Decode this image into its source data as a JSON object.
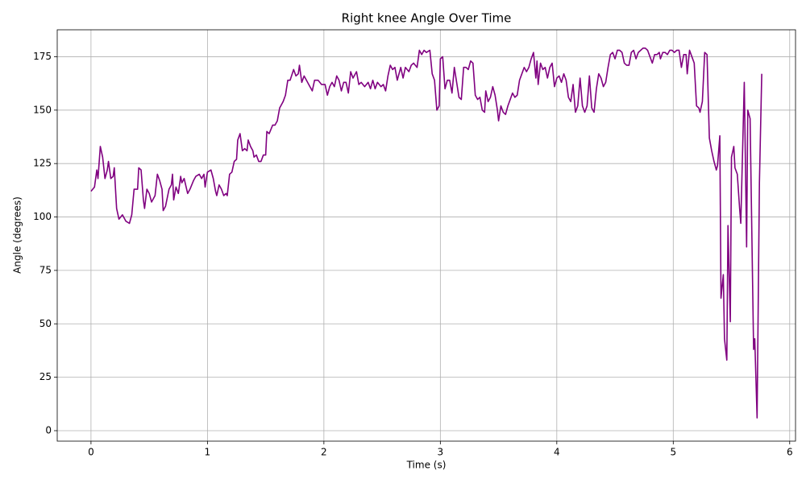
{
  "chart_data": {
    "type": "line",
    "title": "Right knee Angle Over Time",
    "x_label": "Time (s)",
    "y_label": "Angle (degrees)",
    "x": [
      0,
      0.03,
      0.05,
      0.06,
      0.08,
      0.1,
      0.12,
      0.14,
      0.15,
      0.17,
      0.19,
      0.2,
      0.22,
      0.24,
      0.27,
      0.3,
      0.33,
      0.35,
      0.37,
      0.4,
      0.41,
      0.43,
      0.45,
      0.46,
      0.48,
      0.5,
      0.52,
      0.55,
      0.57,
      0.59,
      0.61,
      0.62,
      0.64,
      0.67,
      0.69,
      0.7,
      0.71,
      0.73,
      0.75,
      0.77,
      0.78,
      0.8,
      0.83,
      0.85,
      0.88,
      0.9,
      0.93,
      0.95,
      0.97,
      0.98,
      1,
      1.03,
      1.05,
      1.07,
      1.08,
      1.1,
      1.12,
      1.14,
      1.16,
      1.17,
      1.19,
      1.21,
      1.23,
      1.25,
      1.26,
      1.28,
      1.3,
      1.32,
      1.34,
      1.35,
      1.37,
      1.39,
      1.4,
      1.42,
      1.44,
      1.46,
      1.48,
      1.5,
      1.51,
      1.53,
      1.56,
      1.58,
      1.6,
      1.62,
      1.65,
      1.67,
      1.69,
      1.71,
      1.74,
      1.76,
      1.78,
      1.79,
      1.81,
      1.83,
      1.85,
      1.88,
      1.9,
      1.92,
      1.95,
      1.98,
      2.01,
      2.03,
      2.05,
      2.07,
      2.09,
      2.11,
      2.13,
      2.15,
      2.17,
      2.19,
      2.21,
      2.23,
      2.25,
      2.28,
      2.3,
      2.32,
      2.35,
      2.38,
      2.4,
      2.42,
      2.44,
      2.46,
      2.49,
      2.51,
      2.53,
      2.55,
      2.57,
      2.59,
      2.61,
      2.63,
      2.66,
      2.68,
      2.7,
      2.73,
      2.75,
      2.77,
      2.8,
      2.82,
      2.84,
      2.86,
      2.88,
      2.91,
      2.93,
      2.95,
      2.97,
      2.99,
      3.0,
      3.02,
      3.04,
      3.06,
      3.08,
      3.1,
      3.12,
      3.14,
      3.16,
      3.18,
      3.2,
      3.22,
      3.24,
      3.26,
      3.28,
      3.3,
      3.32,
      3.34,
      3.36,
      3.38,
      3.39,
      3.41,
      3.43,
      3.45,
      3.47,
      3.49,
      3.5,
      3.52,
      3.54,
      3.56,
      3.58,
      3.6,
      3.62,
      3.64,
      3.66,
      3.68,
      3.7,
      3.72,
      3.74,
      3.76,
      3.78,
      3.8,
      3.82,
      3.83,
      3.84,
      3.86,
      3.88,
      3.9,
      3.92,
      3.94,
      3.96,
      3.98,
      4.0,
      4.02,
      4.04,
      4.06,
      4.08,
      4.1,
      4.12,
      4.14,
      4.16,
      4.18,
      4.2,
      4.22,
      4.24,
      4.26,
      4.28,
      4.3,
      4.32,
      4.34,
      4.36,
      4.38,
      4.4,
      4.42,
      4.44,
      4.46,
      4.48,
      4.5,
      4.52,
      4.54,
      4.56,
      4.58,
      4.6,
      4.62,
      4.64,
      4.66,
      4.68,
      4.7,
      4.72,
      4.74,
      4.76,
      4.78,
      4.8,
      4.82,
      4.84,
      4.86,
      4.88,
      4.89,
      4.91,
      4.93,
      4.95,
      4.97,
      4.99,
      5.01,
      5.03,
      5.05,
      5.07,
      5.09,
      5.11,
      5.12,
      5.14,
      5.16,
      5.18,
      5.2,
      5.22,
      5.23,
      5.25,
      5.27,
      5.29,
      5.31,
      5.33,
      5.35,
      5.37,
      5.38,
      5.4,
      5.41,
      5.43,
      5.44,
      5.46,
      5.47,
      5.49,
      5.5,
      5.52,
      5.53,
      5.55,
      5.57,
      5.58,
      5.61,
      5.63,
      5.64,
      5.66,
      5.69,
      5.7,
      5.72,
      5.74,
      5.76
    ],
    "series": [
      {
        "name": "Right knee",
        "color": "#800080",
        "values": [
          112,
          114,
          122,
          118,
          133,
          128,
          118,
          122,
          126,
          118,
          119,
          123,
          104,
          99,
          101,
          98,
          97,
          101,
          113,
          113,
          123,
          122,
          108,
          104,
          113,
          111,
          107,
          110,
          120,
          117,
          113,
          103,
          105,
          113,
          115,
          120,
          108,
          114,
          111,
          119,
          116,
          118,
          111,
          113,
          117,
          119,
          120,
          118,
          120,
          114,
          121,
          122,
          118,
          112,
          110,
          115,
          113,
          110,
          111,
          110,
          120,
          121,
          126,
          127,
          136,
          139,
          131,
          132,
          131,
          136,
          133,
          131,
          128,
          129,
          126,
          126,
          129,
          129,
          140,
          139,
          143,
          143,
          145,
          151,
          154,
          157,
          164,
          164,
          169,
          166,
          167,
          171,
          163,
          166,
          164,
          161,
          159,
          164,
          164,
          162,
          162,
          157,
          161,
          163,
          161,
          166,
          164,
          159,
          163,
          163,
          158,
          168,
          165,
          168,
          162,
          163,
          161,
          163,
          160,
          164,
          160,
          163,
          161,
          162,
          159,
          166,
          171,
          169,
          170,
          164,
          170,
          165,
          170,
          168,
          171,
          172,
          170,
          178,
          176,
          178,
          177,
          178,
          167,
          164,
          150,
          152,
          174,
          175,
          160,
          164,
          164,
          158,
          170,
          163,
          156,
          155,
          170,
          170,
          169,
          173,
          172,
          157,
          155,
          156,
          150,
          149,
          159,
          154,
          156,
          161,
          157,
          150,
          145,
          152,
          149,
          148,
          152,
          155,
          158,
          156,
          157,
          164,
          167,
          170,
          168,
          170,
          174,
          177,
          165,
          173,
          162,
          172,
          169,
          170,
          165,
          170,
          172,
          161,
          165,
          166,
          163,
          167,
          164,
          156,
          154,
          162,
          149,
          152,
          165,
          152,
          149,
          152,
          166,
          151,
          149,
          160,
          167,
          165,
          161,
          163,
          170,
          176,
          177,
          174,
          178,
          178,
          177,
          172,
          171,
          171,
          177,
          178,
          174,
          177,
          178,
          179,
          179,
          178,
          175,
          172,
          176,
          176,
          177,
          174,
          177,
          177,
          176,
          178,
          178,
          177,
          178,
          178,
          170,
          176,
          176,
          167,
          178,
          175,
          172,
          152,
          151,
          149,
          154,
          177,
          176,
          137,
          131,
          126,
          122,
          124,
          138,
          62,
          73,
          43,
          33,
          96,
          51,
          128,
          133,
          123,
          120,
          104,
          97,
          163,
          86,
          150,
          146,
          38,
          43,
          6,
          116,
          167
        ]
      }
    ],
    "xlim": [
      -0.29,
      6.05
    ],
    "ylim": [
      -4.9,
      187.6
    ],
    "xticks": [
      0,
      1,
      2,
      3,
      4,
      5,
      6
    ],
    "yticks": [
      0,
      25,
      50,
      75,
      100,
      125,
      150,
      175
    ],
    "grid": true
  }
}
